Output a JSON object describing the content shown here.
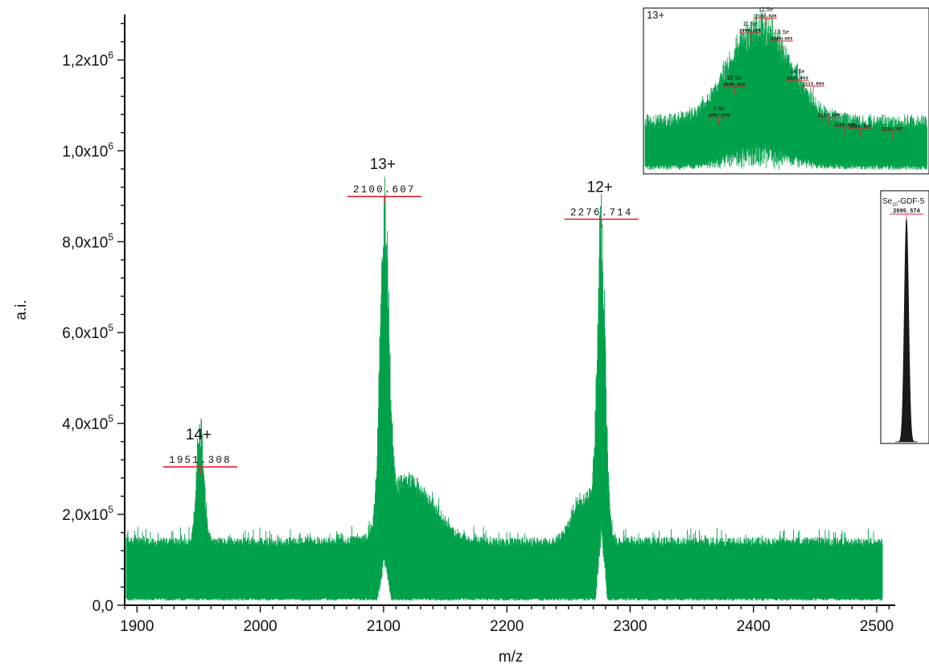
{
  "chart_data": [
    {
      "type": "line",
      "title": "",
      "xlabel": "m/z",
      "ylabel": "a.i.",
      "xlim": [
        1890,
        2515
      ],
      "ylim": [
        0,
        1300000
      ],
      "x_ticks": [
        1900,
        2000,
        2100,
        2200,
        2300,
        2400,
        2500
      ],
      "x_tick_labels": [
        "1900",
        "2000",
        "2100",
        "2200",
        "2300",
        "2400",
        "2500"
      ],
      "y_ticks": [
        0,
        200000,
        400000,
        600000,
        800000,
        1000000,
        1200000
      ],
      "y_tick_labels": [
        {
          "mantissa": "0,0",
          "exponent": ""
        },
        {
          "mantissa": "2,0x10",
          "exponent": "5"
        },
        {
          "mantissa": "4,0x10",
          "exponent": "5"
        },
        {
          "mantissa": "6,0x10",
          "exponent": "5"
        },
        {
          "mantissa": "8,0x10",
          "exponent": "5"
        },
        {
          "mantissa": "1,0x10",
          "exponent": "6"
        },
        {
          "mantissa": "1,2x10",
          "exponent": "6"
        }
      ],
      "grid": false,
      "series_color": "#00a14b",
      "baseline": {
        "low": 10000,
        "high": 150000
      },
      "peaks": [
        {
          "charge": "14+",
          "mz": 1951.308,
          "label": "1951.308",
          "height": 285000
        },
        {
          "charge": "13+",
          "mz": 2100.607,
          "label": "2100.607",
          "height": 880000
        },
        {
          "charge": "12+",
          "mz": 2276.714,
          "label": "2276.714",
          "height": 830000
        }
      ]
    },
    {
      "type": "line",
      "title": "13+",
      "series_color": "#00a14b",
      "xlim": [
        2075,
        2140
      ],
      "peaks": [
        {
          "name": "9 Se",
          "label": "2092.078",
          "mz": 2092.078
        },
        {
          "name": "10 Se",
          "label": "2095.616",
          "mz": 2095.616
        },
        {
          "name": "11 Se",
          "label": "2099.225",
          "mz": 2099.225
        },
        {
          "name": "12 Se",
          "label": "2102.835",
          "mz": 2102.835
        },
        {
          "name": "13 Se",
          "label": "2106.453",
          "mz": 2106.453
        },
        {
          "name": "14 Se",
          "label": "2110.063",
          "mz": 2110.063
        },
        {
          "name": "",
          "label": "2113.684",
          "mz": 2113.684
        },
        {
          "name": "",
          "label": "2117.285",
          "mz": 2117.285
        },
        {
          "name": "",
          "label": "2120.920",
          "mz": 2120.92
        },
        {
          "name": "",
          "label": "2124.467",
          "mz": 2124.467
        },
        {
          "name": "",
          "label": "2131.747",
          "mz": 2131.747
        }
      ]
    },
    {
      "type": "line",
      "title_main": "Se",
      "title_sub": "10",
      "title_rest": "-GDF-5",
      "series_color": "#1a1a1a",
      "peaks": [
        {
          "label": "2095.574",
          "mz": 2095.574
        }
      ]
    }
  ]
}
